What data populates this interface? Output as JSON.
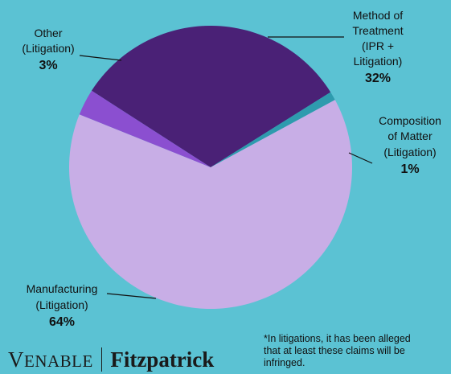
{
  "chart_data": {
    "type": "pie",
    "slices": [
      {
        "label_lines": [
          "Method of",
          "Treatment",
          "(IPR +",
          "Litigation)"
        ],
        "value": 32,
        "pct_label": "32%",
        "color": "#4A2176"
      },
      {
        "label_lines": [
          "Composition",
          "of Matter",
          "(Litigation)"
        ],
        "value": 1,
        "pct_label": "1%",
        "color": "#2E9BAE"
      },
      {
        "label_lines": [
          "Manufacturing",
          "(Litigation)"
        ],
        "value": 64,
        "pct_label": "64%",
        "color": "#C8AEE6"
      },
      {
        "label_lines": [
          "Other",
          "(Litigation)"
        ],
        "value": 3,
        "pct_label": "3%",
        "color": "#8B4FD0"
      }
    ]
  },
  "footnote": {
    "line1": "*In litigations, it has been alleged",
    "line2": "that at least these claims will be",
    "line3": "infringed."
  },
  "logo": {
    "venable_initial": "V",
    "venable_rest": "ENABLE",
    "fitzpatrick": "Fitzpatrick"
  }
}
